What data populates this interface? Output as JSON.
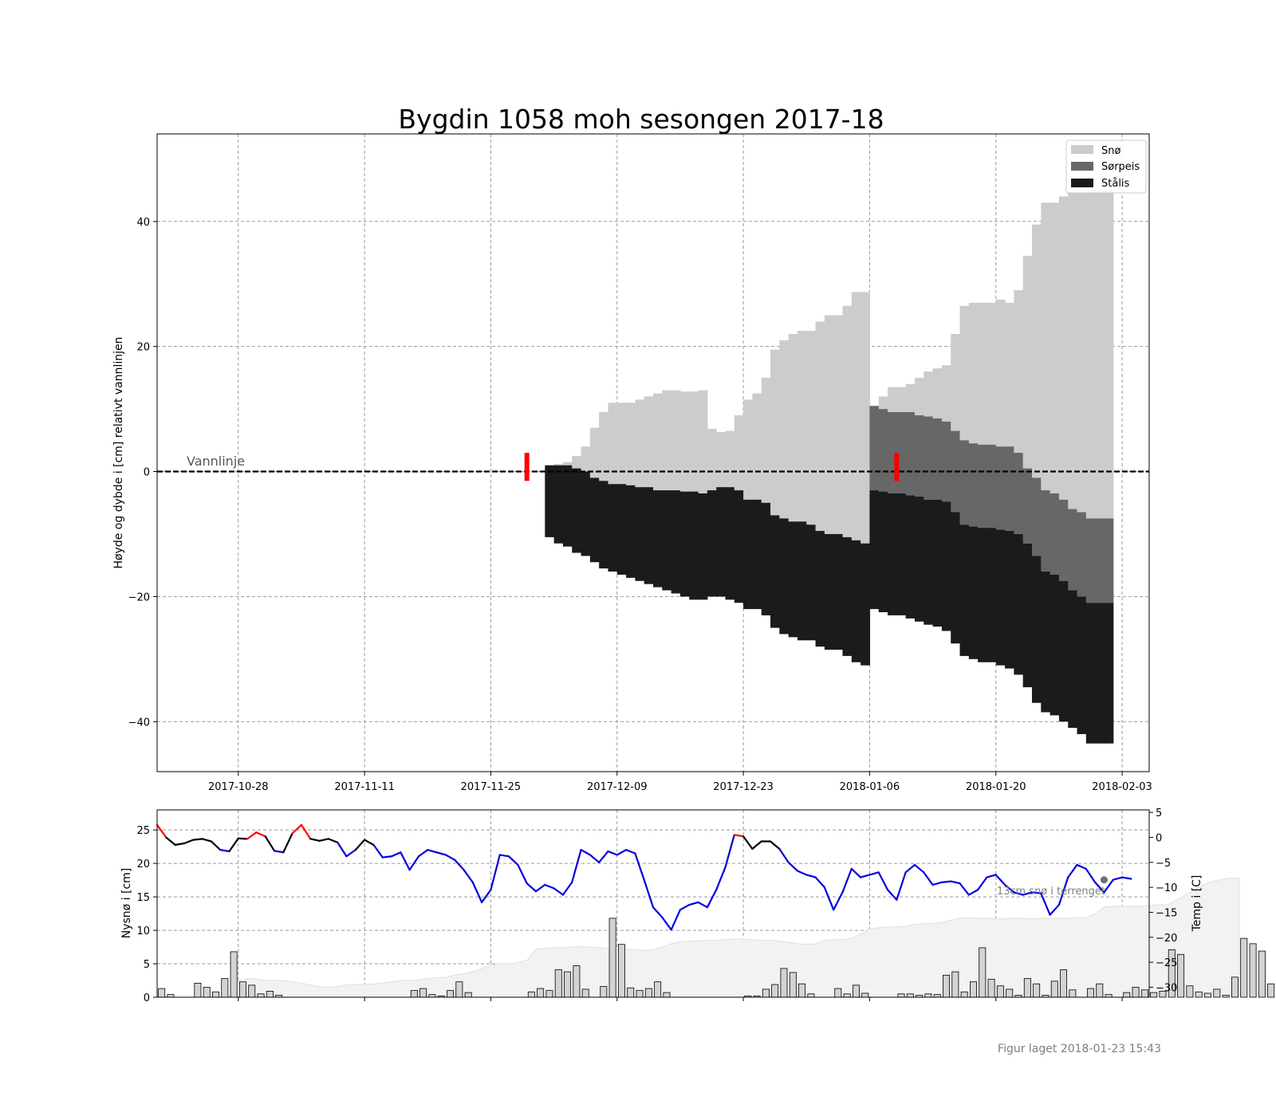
{
  "figure": {
    "title": "Bygdin 1058 moh sesongen 2017-18",
    "footer": "Figur laget 2018-01-23 15:43"
  },
  "chart_data": [
    {
      "type": "area",
      "xlabel": "",
      "ylabel": "Høyde og dybde i [cm] relativt vannlinjen",
      "xlim": [
        "2017-10-19",
        "2018-02-06"
      ],
      "ylim": [
        -48,
        54
      ],
      "x_ticks": [
        "2017-10-28",
        "2017-11-11",
        "2017-11-25",
        "2017-12-09",
        "2017-12-23",
        "2018-01-06",
        "2018-01-20",
        "2018-02-03"
      ],
      "y_ticks": [
        -40,
        -20,
        0,
        20,
        40
      ],
      "grid": true,
      "legend_position": "top-right",
      "waterline_label": "Vannlinje",
      "colors": {
        "sno": "#cccccc",
        "sorpeis": "#676767",
        "stalis": "#1b1b1b",
        "observation": "#ff0000"
      },
      "series": [
        {
          "name": "Snø",
          "key": "sno"
        },
        {
          "name": "Sørpeis",
          "key": "sorpeis"
        },
        {
          "name": "Stålis",
          "key": "stalis"
        }
      ],
      "dates": [
        "2017-12-01",
        "2017-12-02",
        "2017-12-03",
        "2017-12-04",
        "2017-12-05",
        "2017-12-06",
        "2017-12-07",
        "2017-12-08",
        "2017-12-09",
        "2017-12-10",
        "2017-12-11",
        "2017-12-12",
        "2017-12-13",
        "2017-12-14",
        "2017-12-15",
        "2017-12-16",
        "2017-12-17",
        "2017-12-18",
        "2017-12-19",
        "2017-12-20",
        "2017-12-21",
        "2017-12-22",
        "2017-12-23",
        "2017-12-24",
        "2017-12-25",
        "2017-12-26",
        "2017-12-27",
        "2017-12-28",
        "2017-12-29",
        "2017-12-30",
        "2017-12-31",
        "2018-01-01",
        "2018-01-02",
        "2018-01-03",
        "2018-01-04",
        "2018-01-05",
        "2018-01-06",
        "2018-01-07",
        "2018-01-08",
        "2018-01-09",
        "2018-01-10",
        "2018-01-11",
        "2018-01-12",
        "2018-01-13",
        "2018-01-14",
        "2018-01-15",
        "2018-01-16",
        "2018-01-17",
        "2018-01-18",
        "2018-01-19",
        "2018-01-20",
        "2018-01-21",
        "2018-01-22",
        "2018-01-23",
        "2018-01-24",
        "2018-01-25",
        "2018-01-26",
        "2018-01-27",
        "2018-01-28",
        "2018-01-29",
        "2018-01-30",
        "2018-01-31",
        "2018-02-01"
      ],
      "snow_top": [
        1,
        1.2,
        1.5,
        2.5,
        4,
        7,
        9.5,
        11,
        11,
        11,
        11.5,
        12,
        12.5,
        13,
        13,
        12.8,
        12.8,
        13,
        6.8,
        6.3,
        6.5,
        9,
        11.5,
        12.5,
        15,
        19.5,
        21,
        22,
        22.5,
        22.5,
        24,
        25,
        25,
        26.5,
        28.7,
        28.7,
        10.5,
        12,
        13.5,
        13.5,
        14,
        15,
        16,
        16.5,
        17,
        22,
        26.5,
        27,
        27,
        27,
        27.5,
        27,
        29,
        34.5,
        39.5,
        43,
        43,
        44,
        44.5,
        44.5,
        45,
        45,
        45
      ],
      "sorpeis_top": [
        1,
        1,
        1,
        0.5,
        0,
        -1,
        -1.5,
        -2,
        -2,
        -2.2,
        -2.5,
        -2.5,
        -3,
        -3,
        -3,
        -3.2,
        -3.2,
        -3.5,
        -3,
        -2.5,
        -2.5,
        -3,
        -4.5,
        -4.5,
        -5,
        -7,
        -7.5,
        -8,
        -8,
        -8.5,
        -9.5,
        -10,
        -10,
        -10.5,
        -11,
        -11.5,
        10.5,
        10,
        9.5,
        9.5,
        9.5,
        9,
        8.8,
        8.5,
        8,
        6.5,
        5,
        4.5,
        4.3,
        4.3,
        4,
        4,
        3,
        0.5,
        -1,
        -3,
        -3.5,
        -4.5,
        -6,
        -6.5,
        -7.5,
        -7.5,
        -7.5
      ],
      "stalis_top": [
        1,
        1,
        1,
        0.5,
        0,
        -1,
        -1.5,
        -2,
        -2,
        -2.2,
        -2.5,
        -2.5,
        -3,
        -3,
        -3,
        -3.2,
        -3.2,
        -3.5,
        -3,
        -2.5,
        -2.5,
        -3,
        -4.5,
        -4.5,
        -5,
        -7,
        -7.5,
        -8,
        -8,
        -8.5,
        -9.5,
        -10,
        -10,
        -10.5,
        -11,
        -11.5,
        -3,
        -3.2,
        -3.5,
        -3.5,
        -3.8,
        -4,
        -4.5,
        -4.5,
        -4.8,
        -6.5,
        -8.5,
        -8.8,
        -9,
        -9,
        -9.3,
        -9.5,
        -10,
        -11.5,
        -13.5,
        -16,
        -16.5,
        -17.5,
        -19,
        -20,
        -21,
        -21,
        -21
      ],
      "stalis_bottom": [
        -10.5,
        -11.5,
        -12,
        -13,
        -13.5,
        -14.5,
        -15.5,
        -16,
        -16.5,
        -17,
        -17.5,
        -18,
        -18.5,
        -19,
        -19.5,
        -20,
        -20.5,
        -20.5,
        -20,
        -20,
        -20.5,
        -21,
        -22,
        -22,
        -23,
        -25,
        -26,
        -26.5,
        -27,
        -27,
        -28,
        -28.5,
        -28.5,
        -29.5,
        -30.5,
        -31,
        -22,
        -22.5,
        -23,
        -23,
        -23.5,
        -24,
        -24.5,
        -24.8,
        -25.5,
        -27.5,
        -29.5,
        -30,
        -30.5,
        -30.5,
        -31,
        -31.5,
        -32.5,
        -34.5,
        -37,
        -38.5,
        -39,
        -40,
        -41,
        -42,
        -43.5,
        -43.5,
        -43.5
      ],
      "observations": [
        {
          "date": "2017-11-29",
          "top": 3,
          "bottom": -1.5
        },
        {
          "date": "2018-01-09",
          "top": 3,
          "bottom": -1.5
        }
      ]
    },
    {
      "type": "bar",
      "ylabel": "Nysnø i [cm]",
      "y2label": "Temp i [C]",
      "ylim": [
        0,
        28
      ],
      "y2lim": [
        -32,
        5.5
      ],
      "y_ticks": [
        0,
        5,
        10,
        15,
        20,
        25
      ],
      "y2_ticks": [
        -30,
        -25,
        -20,
        -15,
        -10,
        -5,
        0,
        5
      ],
      "annotation": "13cm snø i terrenget",
      "colors": {
        "bar_fill": "#d3d3d3",
        "bar_edge": "#000000",
        "snow_area": "#f2f2f2",
        "temp_cold": "#0000dd",
        "temp_mild": "#000000",
        "temp_warm": "#ff0000",
        "marker": "#707070"
      },
      "start_date": "2017-10-19",
      "nysno": [
        1.3,
        0.4,
        0,
        0,
        2.1,
        1.5,
        0.8,
        2.8,
        6.8,
        2.3,
        1.8,
        0.5,
        0.9,
        0.3,
        0,
        0,
        0,
        0,
        0,
        0,
        0,
        0,
        0,
        0,
        0,
        0,
        0,
        0,
        1,
        1.3,
        0.4,
        0.2,
        1,
        2.3,
        0.7,
        0,
        0,
        0,
        0,
        0,
        0,
        0.8,
        1.3,
        1,
        4.1,
        3.8,
        4.7,
        1.2,
        0,
        1.6,
        11.8,
        7.9,
        1.4,
        1,
        1.3,
        2.3,
        0.7,
        0,
        0,
        0,
        0,
        0,
        0,
        0,
        0,
        0.2,
        0.2,
        1.2,
        1.9,
        4.3,
        3.7,
        2,
        0.5,
        0,
        0,
        1.3,
        0.5,
        1.8,
        0.6,
        0,
        0,
        0,
        0.5,
        0.5,
        0.3,
        0.5,
        0.4,
        3.3,
        3.8,
        0.8,
        2.3,
        7.4,
        2.7,
        1.7,
        1.2,
        0.3,
        2.8,
        2,
        0.3,
        2.4,
        4.1,
        1.1,
        0,
        1.3,
        2,
        0.4,
        0,
        0.7,
        1.5,
        1.1,
        0.7,
        0.9,
        7.1,
        6.4,
        1.7,
        0.8,
        0.6,
        1.2,
        0.3,
        3,
        8.8,
        8,
        6.9,
        2,
        3.7,
        6.7,
        3.8,
        2.6
      ],
      "sno_terreng": [
        0,
        0,
        0,
        0,
        0,
        0,
        0,
        0,
        0,
        2.5,
        2.8,
        2.7,
        2.5,
        2.5,
        2.5,
        2.3,
        2.1,
        1.8,
        1.6,
        1.5,
        1.6,
        1.8,
        1.9,
        1.9,
        2,
        2.1,
        2.3,
        2.5,
        2.5,
        2.6,
        2.8,
        2.9,
        3,
        3.3,
        3.5,
        3.8,
        4.3,
        4.8,
        5,
        5,
        5.2,
        5.5,
        7.2,
        7.3,
        7.4,
        7.4,
        7.5,
        7.6,
        7.5,
        7.4,
        7.3,
        7.2,
        7.2,
        7.1,
        7,
        7.1,
        7.5,
        8,
        8.3,
        8.4,
        8.4,
        8.5,
        8.5,
        8.6,
        8.7,
        8.7,
        8.6,
        8.5,
        8.5,
        8.4,
        8.2,
        8,
        7.9,
        8,
        8.5,
        8.6,
        8.6,
        8.8,
        9.4,
        10.2,
        10.4,
        10.5,
        10.5,
        10.6,
        10.9,
        11,
        11,
        11.2,
        11.5,
        11.8,
        11.9,
        11.8,
        11.8,
        11.7,
        11.7,
        11.8,
        11.8,
        11.7,
        11.8,
        11.8,
        11.8,
        11.8,
        11.9,
        11.9,
        12.5,
        13.5,
        13.6,
        13.6,
        13.6,
        13.6,
        13.7,
        13.8,
        13.8,
        14.5,
        15.2,
        16,
        16.8,
        17.3,
        17.6,
        17.8,
        17.8
      ],
      "temp": [
        2.5,
        0,
        -1.5,
        -1.2,
        -0.5,
        -0.3,
        -0.8,
        -2.5,
        -2.8,
        -0.2,
        -0.3,
        1,
        0.2,
        -2.7,
        -3,
        0.8,
        2.5,
        -0.3,
        -0.7,
        -0.3,
        -1,
        -3.8,
        -2.5,
        -0.5,
        -1.5,
        -4,
        -3.8,
        -3,
        -6.5,
        -3.8,
        -2.5,
        -3,
        -3.5,
        -4.5,
        -6.5,
        -9,
        -13,
        -10.5,
        -3.5,
        -3.8,
        -5.5,
        -9.2,
        -10.8,
        -9.5,
        -10.2,
        -11.5,
        -9,
        -2.5,
        -3.5,
        -5,
        -2.8,
        -3.5,
        -2.5,
        -3.2,
        -8.5,
        -14,
        -16,
        -18.5,
        -14.5,
        -13.5,
        -13,
        -14,
        -10.5,
        -6,
        0.5,
        0.2,
        -2.3,
        -0.8,
        -0.8,
        -2.3,
        -5,
        -6.7,
        -7.5,
        -8,
        -10,
        -14.5,
        -11,
        -6.3,
        -8,
        -7.5,
        -7,
        -10.5,
        -12.5,
        -7,
        -5.5,
        -7,
        -9.5,
        -9,
        -8.8,
        -9.2,
        -11.5,
        -10.5,
        -8,
        -7.5,
        -9.5,
        -11,
        -11.5,
        -11,
        -11.2,
        -15.5,
        -13.5,
        -8,
        -5.5,
        -6.3,
        -9,
        -11,
        -8.5,
        -8,
        -8.3
      ],
      "temp_marker": {
        "date": "2018-02-01",
        "value": -8.5
      }
    }
  ]
}
